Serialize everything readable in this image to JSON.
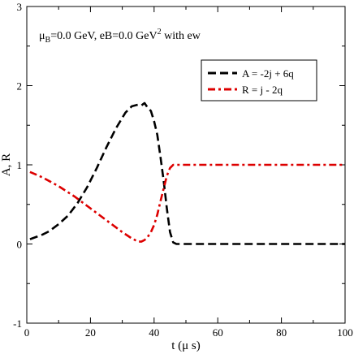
{
  "chart_data": {
    "type": "line",
    "annotation": {
      "mu_sym": "μ",
      "mu_sub": "B",
      "mu_rest": "=0.0 GeV, eB=0.0 GeV",
      "sup": "2",
      "tail": " with ew"
    },
    "xlabel": "t (μ s)",
    "ylabel": "A, R",
    "xlim": [
      0,
      100
    ],
    "ylim": [
      -1,
      3
    ],
    "x_ticks": [
      0,
      20,
      40,
      60,
      80,
      100
    ],
    "y_ticks": [
      -1,
      0,
      1,
      2,
      3
    ],
    "x_tick_labels": [
      "0",
      "20",
      "40",
      "60",
      "80",
      "100"
    ],
    "y_tick_labels": [
      "-1",
      "0",
      "1",
      "2",
      "3"
    ],
    "legend_position": "top-right",
    "series": [
      {
        "name": "A = -2j + 6q",
        "color": "#000000",
        "style": "dashed",
        "x": [
          1,
          3,
          5,
          7,
          10,
          13,
          16,
          19,
          22,
          25,
          28,
          31,
          33,
          35,
          36,
          37,
          38,
          39,
          40,
          41,
          42,
          43,
          44,
          45,
          46,
          47,
          50,
          60,
          70,
          80,
          90,
          100
        ],
        "y": [
          0.06,
          0.09,
          0.12,
          0.16,
          0.25,
          0.36,
          0.52,
          0.72,
          0.96,
          1.22,
          1.46,
          1.66,
          1.74,
          1.76,
          1.75,
          1.78,
          1.72,
          1.68,
          1.55,
          1.38,
          1.1,
          0.8,
          0.45,
          0.15,
          0.02,
          0.0,
          0.0,
          0.0,
          0.0,
          0.0,
          0.0,
          0.0
        ]
      },
      {
        "name": "R = j - 2q",
        "color": "#dd0000",
        "style": "dashdot",
        "x": [
          1,
          5,
          10,
          15,
          20,
          25,
          30,
          33,
          35,
          36,
          37,
          38,
          39,
          40,
          41,
          42,
          43,
          44,
          45,
          46,
          47,
          50,
          60,
          70,
          80,
          90,
          100
        ],
        "y": [
          0.91,
          0.84,
          0.73,
          0.6,
          0.45,
          0.3,
          0.15,
          0.07,
          0.03,
          0.03,
          0.05,
          0.09,
          0.15,
          0.24,
          0.37,
          0.54,
          0.7,
          0.86,
          0.96,
          1.0,
          1.0,
          1.0,
          1.0,
          1.0,
          1.0,
          1.0,
          1.0
        ]
      }
    ]
  }
}
